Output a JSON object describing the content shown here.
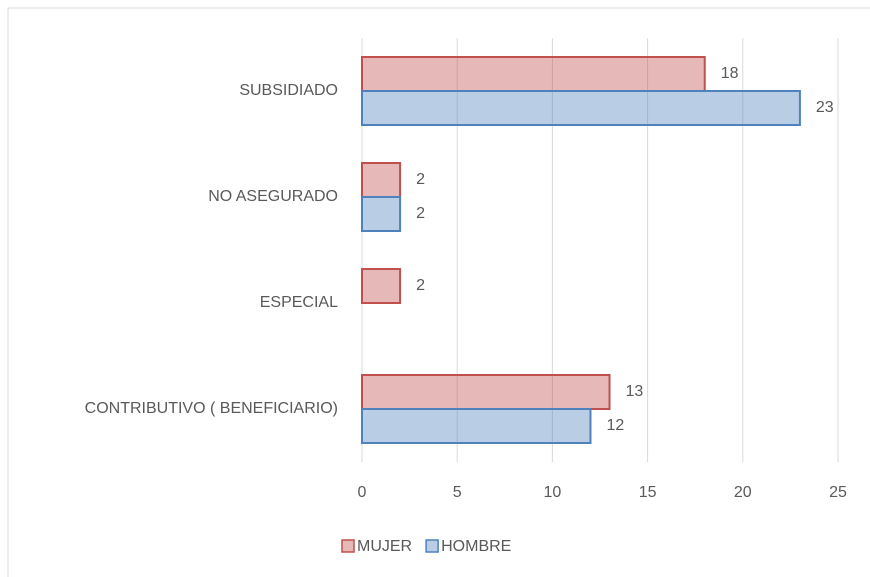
{
  "chart_data": {
    "type": "barh",
    "categories": [
      "SUBSIDIADO",
      "NO ASEGURADO",
      "ESPECIAL",
      "CONTRIBUTIVO ( BENEFICIARIO)"
    ],
    "series": [
      {
        "name": "MUJER",
        "color": "#c0504d",
        "values": [
          18,
          2,
          2,
          13
        ]
      },
      {
        "name": "HOMBRE",
        "color": "#4f81bd",
        "values": [
          23,
          2,
          null,
          12
        ]
      }
    ],
    "xlim": [
      0,
      25
    ],
    "xticks": [
      0,
      5,
      10,
      15,
      20,
      25
    ],
    "grid": true,
    "legend": "bottom"
  }
}
